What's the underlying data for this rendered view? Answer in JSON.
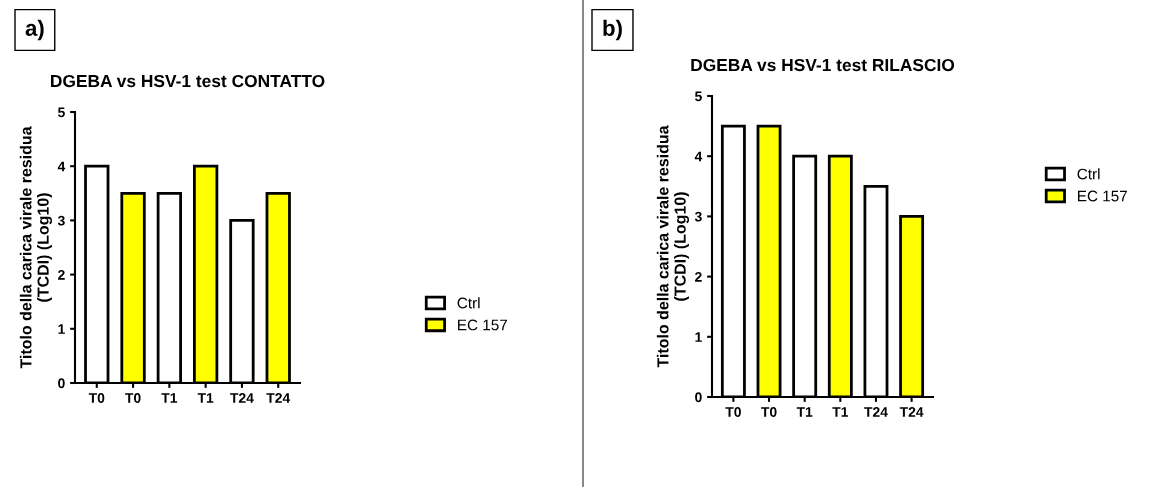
{
  "chart_data": [
    {
      "type": "bar",
      "title": "DGEBA vs HSV-1 test CONTATTO",
      "ylabel": "Titolo della carica virale residua\n(TCDI) (Log10)",
      "categories": [
        "T0",
        "T0",
        "T1",
        "T1",
        "T24",
        "T24"
      ],
      "series": [
        {
          "name": "Ctrl",
          "color": "#ffffff",
          "values": [
            4,
            null,
            3.5,
            null,
            3,
            null
          ]
        },
        {
          "name": "EC 157",
          "color": "#ffff00",
          "values": [
            null,
            3.5,
            null,
            4,
            null,
            3.5
          ]
        }
      ],
      "ylim": [
        0,
        5
      ],
      "yticks": [
        0,
        1,
        2,
        3,
        4,
        5
      ],
      "grid": false,
      "legend": "right",
      "annotations": [
        "a)"
      ]
    },
    {
      "type": "bar",
      "title": "DGEBA vs HSV-1 test RILASCIO",
      "ylabel": "Titolo della carica virale residua\n(TCDI) (Log10)",
      "categories": [
        "T0",
        "T0",
        "T1",
        "T1",
        "T24",
        "T24"
      ],
      "series": [
        {
          "name": "Ctrl",
          "color": "#ffffff",
          "values": [
            4.5,
            null,
            4,
            null,
            3.5,
            null
          ]
        },
        {
          "name": "EC 157",
          "color": "#ffff00",
          "values": [
            null,
            4.5,
            null,
            4,
            null,
            3
          ]
        }
      ],
      "ylim": [
        0,
        5
      ],
      "yticks": [
        0,
        1,
        2,
        3,
        4,
        5
      ],
      "grid": false,
      "legend": "right",
      "annotations": [
        "b)"
      ]
    }
  ]
}
